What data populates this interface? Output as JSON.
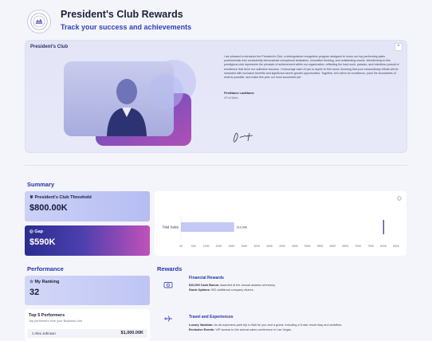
{
  "header": {
    "title": "President's Club Rewards",
    "subtitle": "Track your success and achievements"
  },
  "hero": {
    "title": "President's Club",
    "close_label": "^",
    "letter": "I am pleased to introduce the President's Club, a distinguished recognition program designed to honor our top-performing sales professionals who consistently demonstrate exceptional dedication, innovative thinking, and outstanding results. Membership in this prestigious club represents the pinnacle of achievement within our organization, reflecting the hard work, passion, and relentless pursuit of excellence that drive our collective success. I encourage each of you to aspire to this honor, knowing that your extraordinary efforts will be rewarded with exclusive benefits and significant career growth opportunities. Together, let's strive for excellence, push the boundaries of what is possible, and make this year our most successful yet.",
    "signer_name": "FirstName LastName",
    "signer_role": "VP of Sales"
  },
  "summary": {
    "label": "Summary",
    "threshold_label": "President's Club Threshold",
    "threshold_value": "$800.00K",
    "gap_label": "Gap",
    "gap_value": "$590K"
  },
  "chart_data": {
    "type": "bar",
    "orientation": "horizontal",
    "categories": [
      "Total Sales"
    ],
    "values": [
      210
    ],
    "data_labels": [
      "210.00K"
    ],
    "threshold_marker": 800,
    "xlim": [
      0,
      850
    ],
    "ticks": [
      "0K",
      "50K",
      "100K",
      "150K",
      "200K",
      "250K",
      "300K",
      "350K",
      "400K",
      "450K",
      "500K",
      "550K",
      "600K",
      "650K",
      "700K",
      "750K",
      "800K",
      "850K"
    ],
    "colors": {
      "bar": "#c3c8f4",
      "marker": "#2a2d8e"
    }
  },
  "performance": {
    "label": "Performance",
    "ranking_label": "My Ranking",
    "ranking_value": "32",
    "top5_title": "Top 5 Performers",
    "top5_sub": "Top performers from your Business Unit",
    "top5": [
      {
        "rank": "1",
        "name": "Alex Johnson",
        "value": "$1,000.00K"
      }
    ]
  },
  "rewards": {
    "label": "Rewards",
    "items": [
      {
        "icon": "cash-icon",
        "title": "Financial Rewards",
        "lines": [
          {
            "key": "$10,000 Cash Bonus:",
            "text": "Awarded at the annual awards ceremony."
          },
          {
            "key": "Stock Options:",
            "text": "500 additional company shares."
          }
        ]
      },
      {
        "icon": "plane-icon",
        "title": "Travel and Experiences",
        "lines": [
          {
            "key": "Luxury Vacation:",
            "text": "An all-expenses-paid trip to Bali for you and a guest, including a 5-star resort stay and activities."
          },
          {
            "key": "Exclusive Events:",
            "text": "VIP access to the annual sales conference in Las Vegas."
          }
        ]
      }
    ]
  }
}
